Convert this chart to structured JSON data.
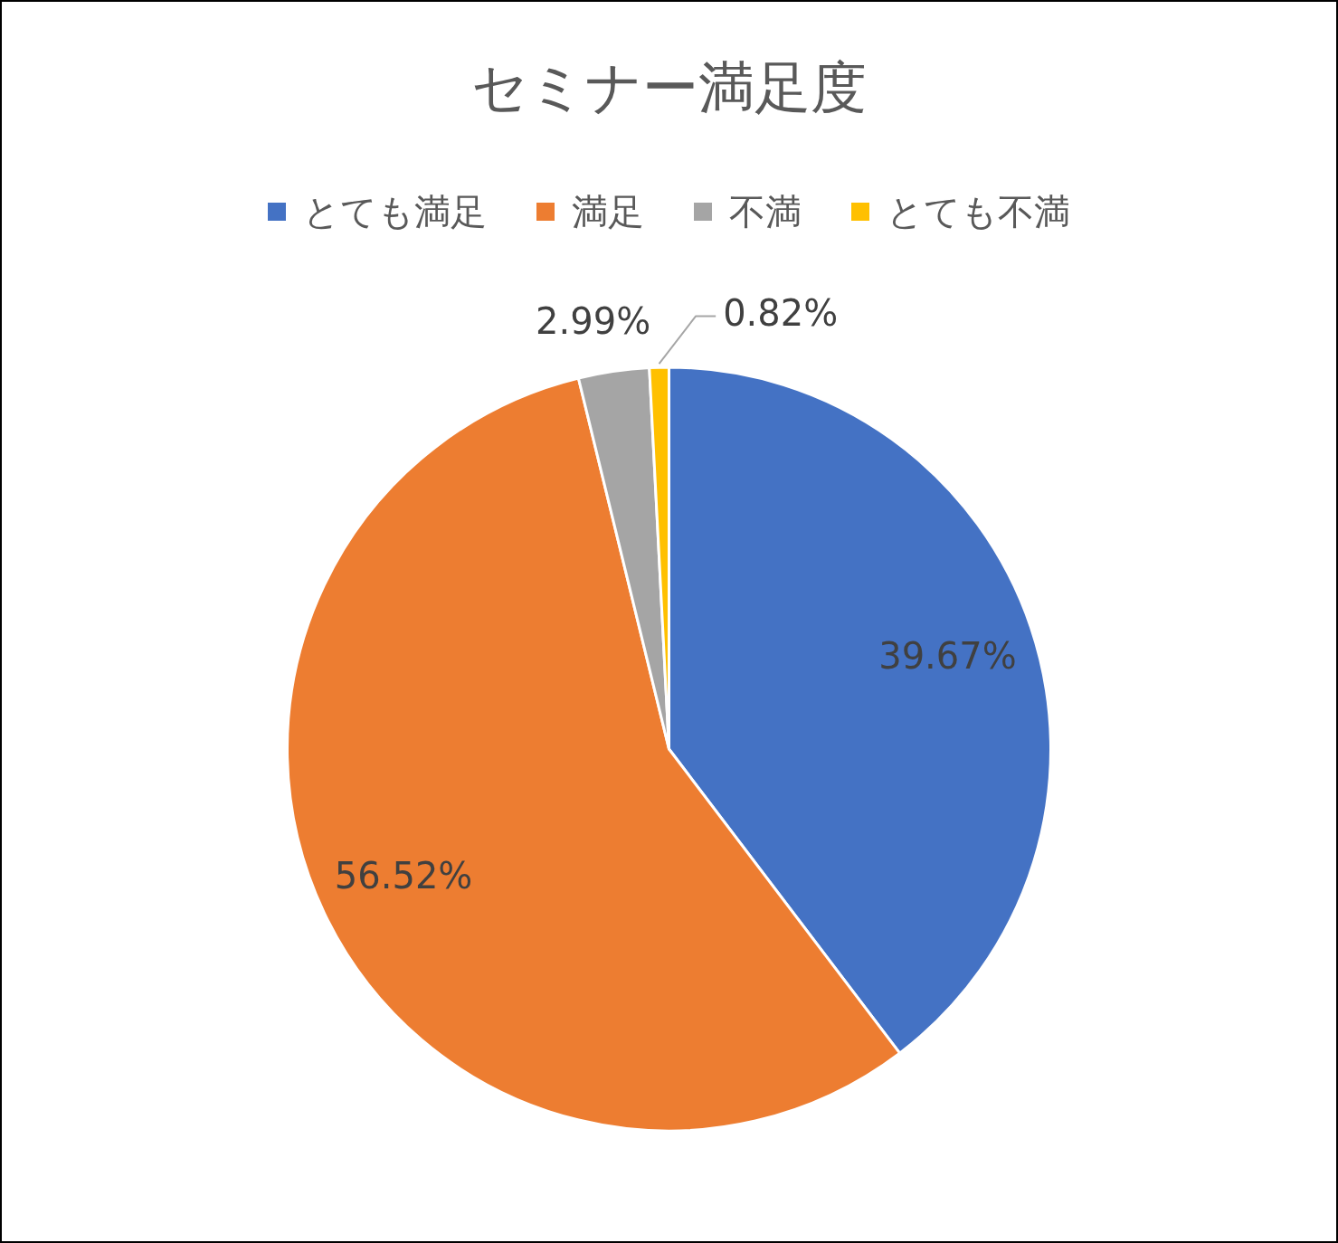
{
  "chart_data": {
    "type": "pie",
    "title": "セミナー満足度",
    "categories": [
      "とても満足",
      "満足",
      "不満",
      "とても不満"
    ],
    "values": [
      39.67,
      56.52,
      2.99,
      0.82
    ],
    "colors": [
      "#4472c4",
      "#ed7d31",
      "#a5a5a5",
      "#ffc000"
    ],
    "value_labels": [
      "39.67%",
      "56.52%",
      "2.99%",
      "0.82%"
    ],
    "legend": "top"
  }
}
